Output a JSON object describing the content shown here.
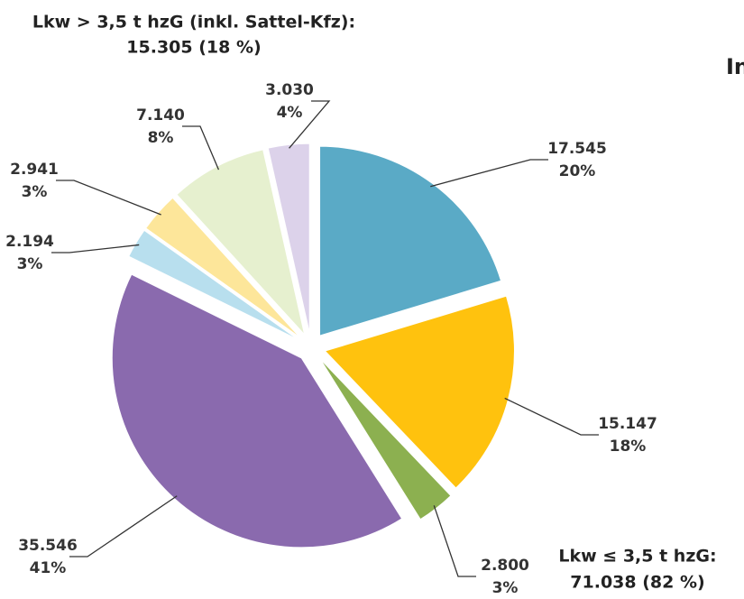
{
  "chart_data": {
    "type": "pie",
    "categories": [
      null,
      null,
      null,
      null,
      null,
      null,
      null,
      null
    ],
    "values": [
      17545,
      15147,
      2800,
      35546,
      2194,
      2941,
      7140,
      3030
    ],
    "value_labels": [
      "17.545",
      "15.147",
      "2.800",
      "35.546",
      "2.194",
      "2.941",
      "7.140",
      "3.030"
    ],
    "percent_labels": [
      "20%",
      "18%",
      "3%",
      "41%",
      "3%",
      "3%",
      "8%",
      "4%"
    ],
    "colors": [
      "#5aaac6",
      "#ffc20e",
      "#8cb050",
      "#8a6aae",
      "#b8dfee",
      "#fde69a",
      "#e6f0cf",
      "#dcd2ea"
    ],
    "annotations": [
      "Lkw > 3,5 t hzG (inkl. Sattel-Kfz):",
      "15.305 (18 %)",
      "Lkw ≤ 3,5 t hzG:",
      "71.038 (82 %)",
      "In"
    ]
  }
}
